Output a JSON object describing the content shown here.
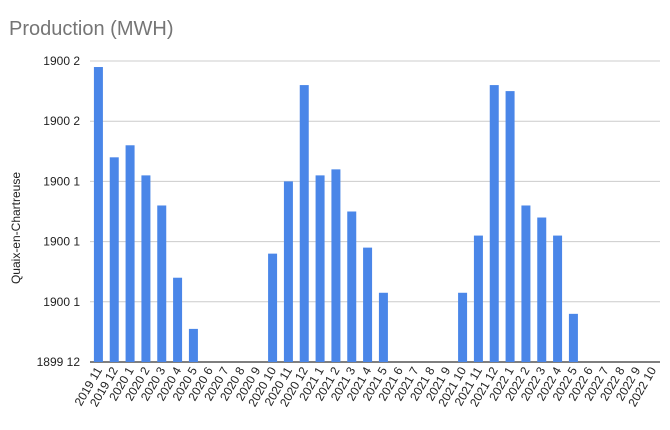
{
  "chart_data": {
    "type": "bar",
    "title": "Production (MWH)",
    "xlabel": "",
    "ylabel": "Quaix-en-Chartreuse",
    "bar_color": "#4a86e8",
    "grid": true,
    "legend": "none",
    "y_tick_labels": [
      "1899 12",
      "1900 1",
      "1900 1",
      "1900 1",
      "1900 2",
      "1900 2"
    ],
    "y_ticks_count": 6,
    "ylim": [
      0,
      5
    ],
    "categories": [
      "2019 11",
      "2019 12",
      "2020 1",
      "2020 2",
      "2020 3",
      "2020 4",
      "2020 5",
      "2020 6",
      "2020 7",
      "2020 8",
      "2020 9",
      "2020 10",
      "2020 11",
      "2020 12",
      "2021 1",
      "2021 2",
      "2021 3",
      "2021 4",
      "2021 5",
      "2021 6",
      "2021 7",
      "2021 8",
      "2021 9",
      "2021 10",
      "2021 11",
      "2021 12",
      "2022 1",
      "2022 2",
      "2022 3",
      "2022 4",
      "2022 5",
      "2022 6",
      "2022 7",
      "2022 8",
      "2022 9",
      "2022 10"
    ],
    "values": [
      4.9,
      3.4,
      3.6,
      3.1,
      2.6,
      1.4,
      0.55,
      0,
      0,
      0,
      0,
      1.8,
      3.0,
      4.6,
      3.1,
      3.2,
      2.5,
      1.9,
      1.15,
      0,
      0,
      0,
      0,
      1.15,
      2.1,
      4.6,
      4.5,
      2.6,
      2.4,
      2.1,
      0.8,
      0,
      0,
      0,
      0,
      0
    ]
  }
}
